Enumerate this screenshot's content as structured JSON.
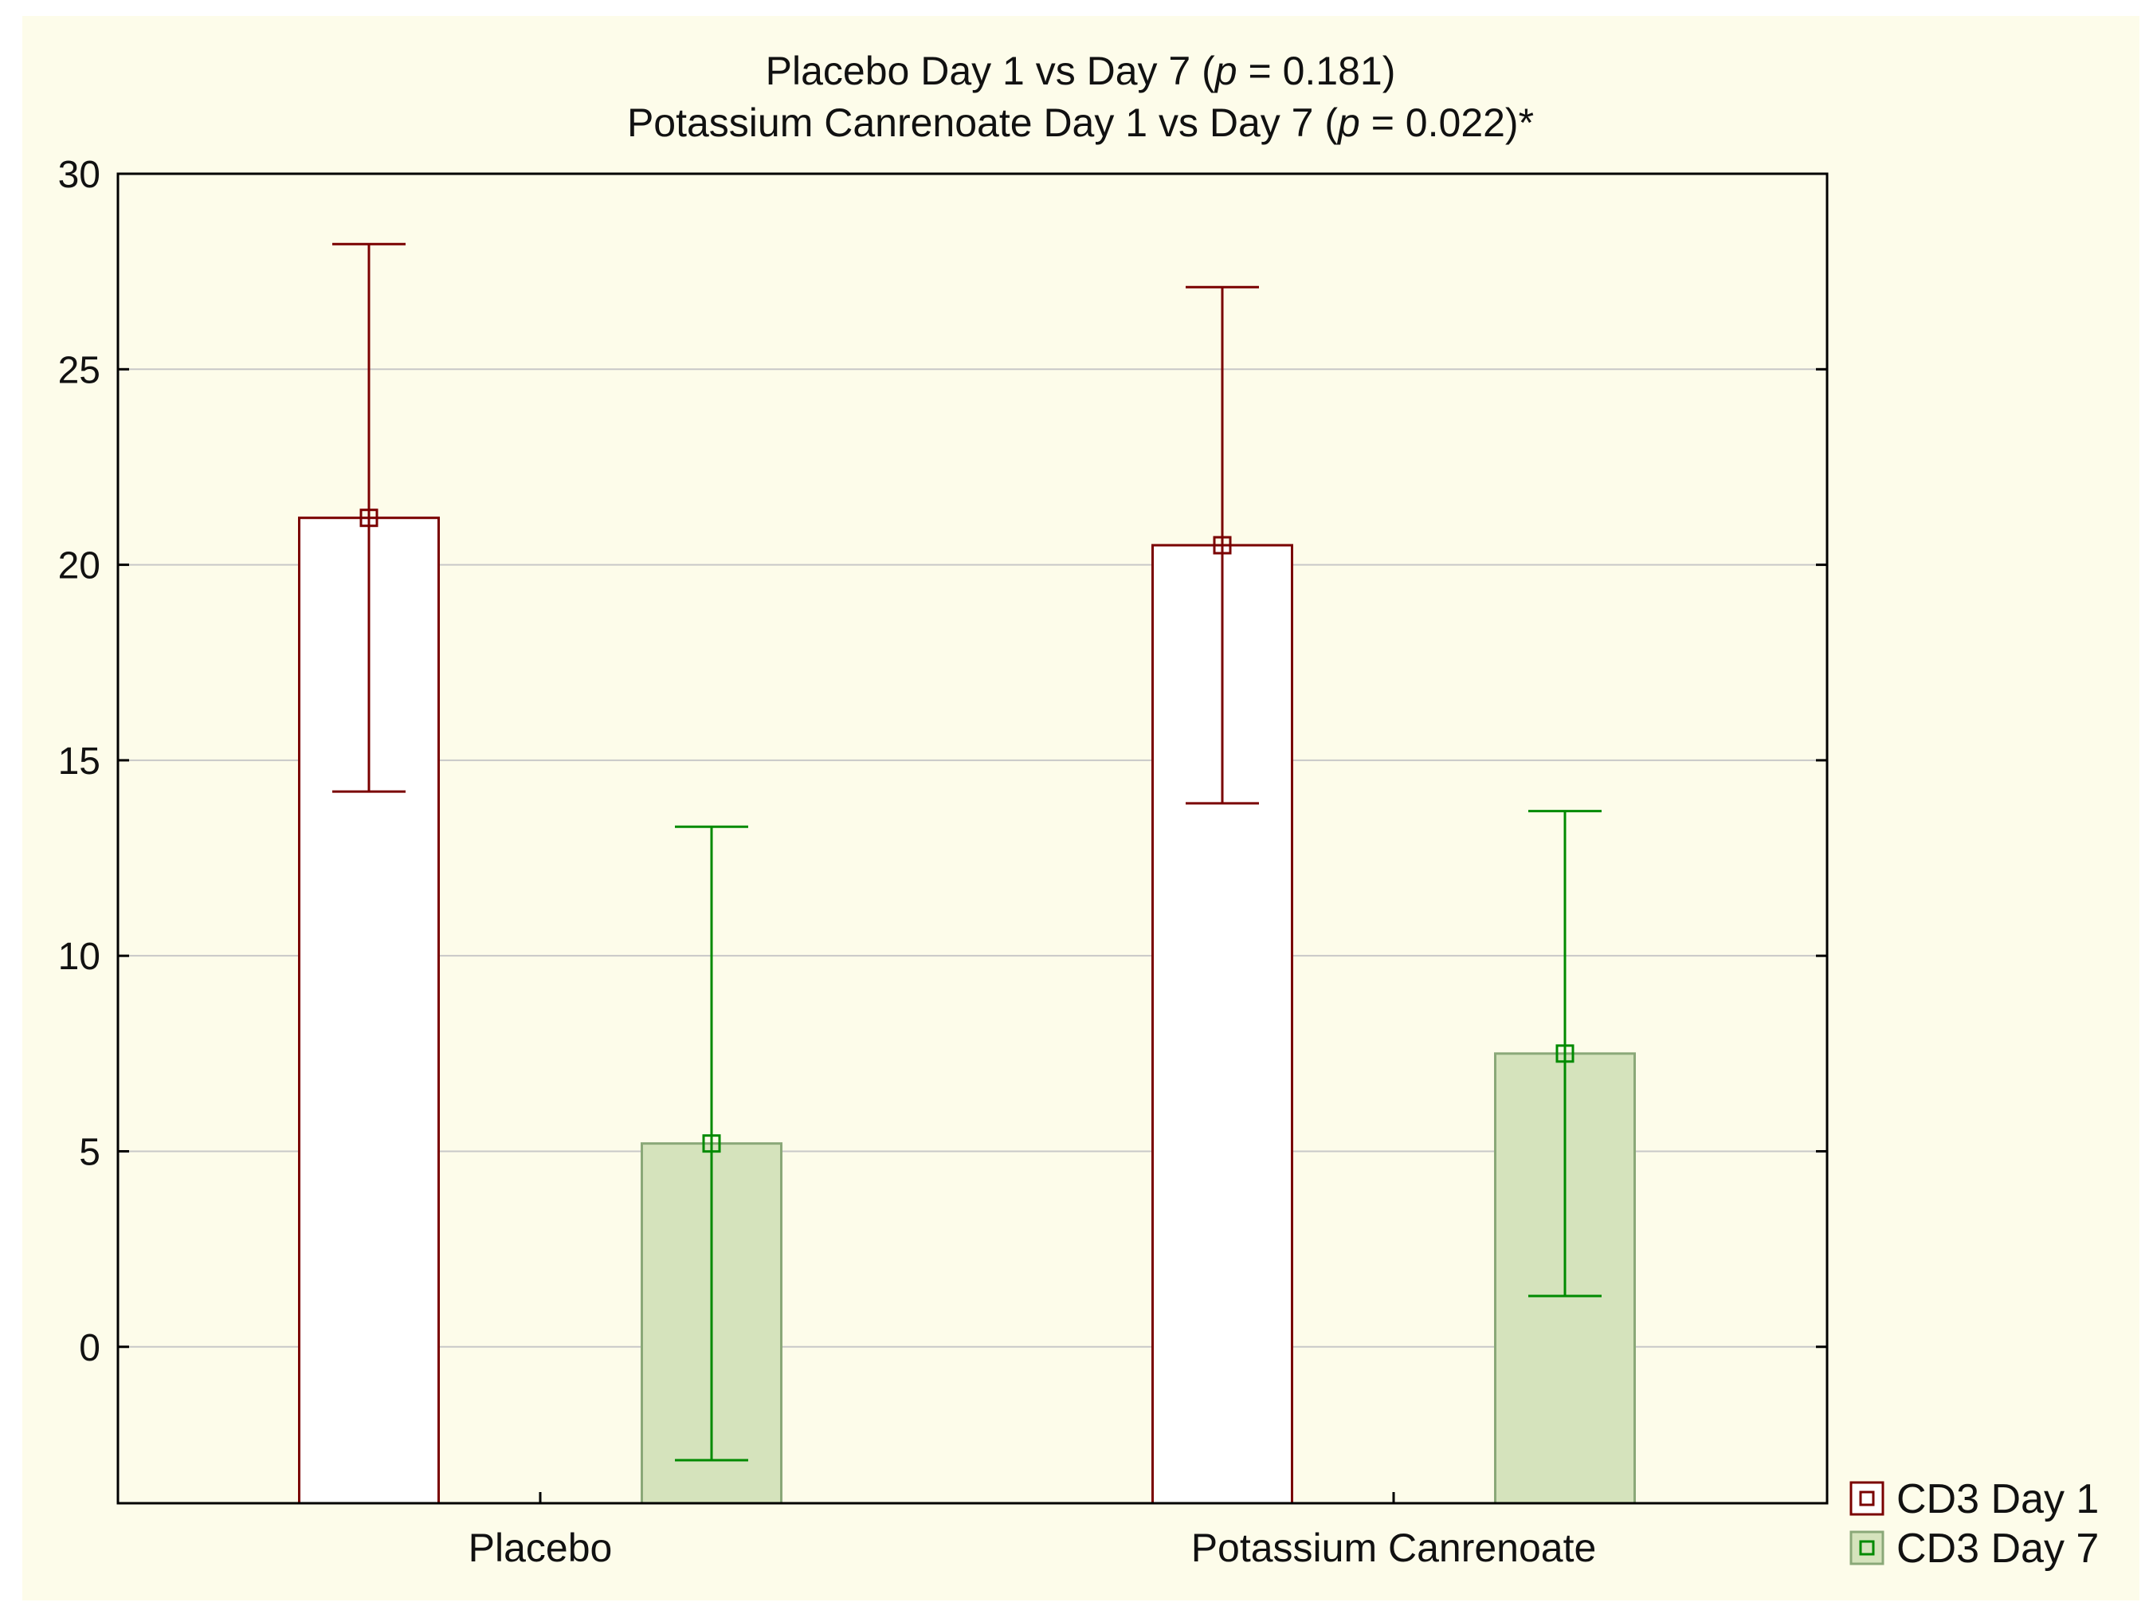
{
  "chart_data": {
    "type": "bar",
    "title_line1": [
      "Placebo Day 1 vs Day 7 (",
      "p",
      " = 0.181)"
    ],
    "title_line2": [
      "Potassium Canrenoate Day 1 vs Day 7 (",
      "p",
      " = 0.022)*"
    ],
    "xlabel": "",
    "ylabel": "",
    "categories": [
      "Placebo",
      "Potassium Canrenoate"
    ],
    "ylim": [
      -4,
      30
    ],
    "yticks": [
      0,
      5,
      10,
      15,
      20,
      25,
      30
    ],
    "grid": true,
    "legend_position": "bottom-right outside",
    "series": [
      {
        "name": "CD3 Day 1",
        "values": [
          21.2,
          20.5
        ],
        "error_low": [
          14.2,
          13.9
        ],
        "error_high": [
          28.2,
          27.1
        ],
        "edge_color": "#7a0000",
        "fill_color": "#ffffff",
        "error_color": "#7a0000"
      },
      {
        "name": "CD3 Day 7",
        "values": [
          5.2,
          7.5
        ],
        "error_low": [
          -2.9,
          1.3
        ],
        "error_high": [
          13.3,
          13.7
        ],
        "edge_color": "#8aa878",
        "fill_color": "#d5e3bc",
        "error_color": "#008a00"
      }
    ]
  }
}
